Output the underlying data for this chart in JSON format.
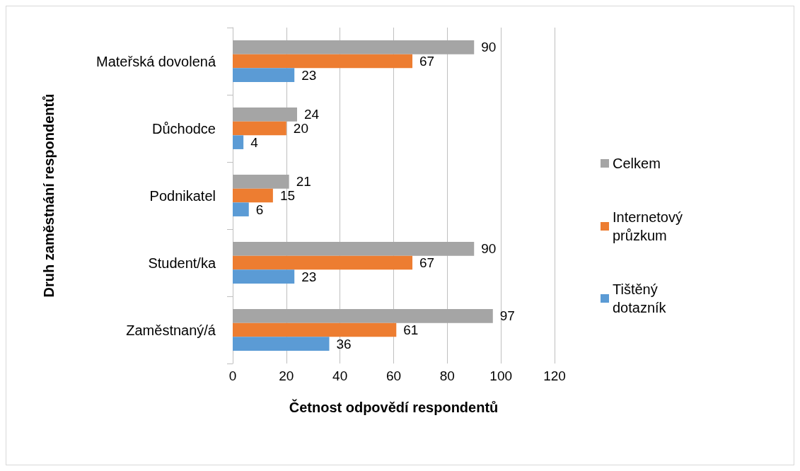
{
  "chart_data": {
    "type": "bar",
    "orientation": "horizontal",
    "xlabel": "Četnost odpovědí respondentů",
    "ylabel": "Druh zaměstnání respondentů",
    "categories": [
      "Mateřská dovolená",
      "Důchodce",
      "Podnikatel",
      "Student/ka",
      "Zaměstnaný/á"
    ],
    "series": [
      {
        "name": "Celkem",
        "color": "#a5a5a5",
        "values": [
          90,
          24,
          21,
          90,
          97
        ]
      },
      {
        "name": "Internetový průzkum",
        "color": "#ed7d31",
        "values": [
          67,
          20,
          15,
          67,
          61
        ]
      },
      {
        "name": "Tištěný dotazník",
        "color": "#5b9bd5",
        "values": [
          23,
          4,
          6,
          23,
          36
        ]
      }
    ],
    "xlim": [
      0,
      120
    ],
    "xticks": [
      0,
      20,
      40,
      60,
      80,
      100,
      120
    ],
    "grid": "x",
    "legend": "right",
    "data_labels": true
  }
}
